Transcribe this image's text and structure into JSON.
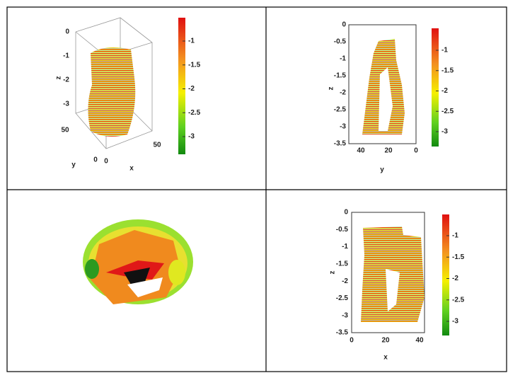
{
  "top_left": {
    "z_label": "z",
    "y_label": "y",
    "x_label": "x",
    "z_ticks": [
      0,
      -1,
      -2,
      -3
    ],
    "y_ticks": [
      50,
      0
    ],
    "x_ticks": [
      0,
      50
    ],
    "colorbar_ticks": [
      -1,
      -1.5,
      -2,
      -2.5,
      -3
    ]
  },
  "top_right": {
    "z_label": "z",
    "x_label": "y",
    "z_ticks": [
      0,
      -0.5,
      -1,
      -1.5,
      -2,
      -2.5,
      -3,
      -3.5
    ],
    "x_ticks": [
      40,
      20,
      0
    ],
    "colorbar_ticks": [
      -1,
      -1.5,
      -2,
      -2.5,
      -3
    ]
  },
  "bottom_right": {
    "z_label": "z",
    "x_label": "x",
    "z_ticks": [
      0,
      -0.5,
      -1,
      -1.5,
      -2,
      -2.5,
      -3,
      -3.5
    ],
    "x_ticks": [
      0,
      20,
      40
    ],
    "colorbar_ticks": [
      -1,
      -1.5,
      -2,
      -2.5,
      -3
    ]
  }
}
